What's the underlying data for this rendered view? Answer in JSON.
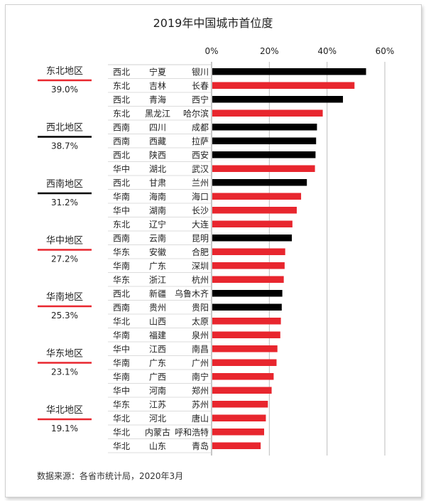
{
  "chart_data": {
    "type": "bar",
    "orientation": "horizontal",
    "title": "2019年中国城市首位度",
    "xlim": [
      0,
      60
    ],
    "xticks": [
      "0%",
      "20%",
      "40%",
      "60%"
    ],
    "tick_values": [
      0,
      20,
      40,
      60
    ],
    "grid": true,
    "colors": {
      "black": "#000000",
      "red": "#e8262e",
      "axis": "#bdbdbd",
      "sep": "#d0d0d0"
    },
    "rows": [
      {
        "region": "西北",
        "province": "宁夏",
        "city": "银川",
        "value": 53.5,
        "color": "black"
      },
      {
        "region": "东北",
        "province": "吉林",
        "city": "长春",
        "value": 49.5,
        "color": "red"
      },
      {
        "region": "西北",
        "province": "青海",
        "city": "西宁",
        "value": 45.5,
        "color": "black"
      },
      {
        "region": "东北",
        "province": "黑龙江",
        "city": "哈尔滨",
        "value": 38.5,
        "color": "red"
      },
      {
        "region": "西南",
        "province": "四川",
        "city": "成都",
        "value": 36.5,
        "color": "black"
      },
      {
        "region": "西南",
        "province": "西藏",
        "city": "拉萨",
        "value": 36.2,
        "color": "black"
      },
      {
        "region": "西北",
        "province": "陕西",
        "city": "西安",
        "value": 36.0,
        "color": "black"
      },
      {
        "region": "华中",
        "province": "湖北",
        "city": "武汉",
        "value": 35.8,
        "color": "red"
      },
      {
        "region": "西北",
        "province": "甘肃",
        "city": "兰州",
        "value": 33.0,
        "color": "black"
      },
      {
        "region": "华南",
        "province": "海南",
        "city": "海口",
        "value": 31.0,
        "color": "red"
      },
      {
        "region": "华中",
        "province": "湖南",
        "city": "长沙",
        "value": 29.5,
        "color": "red"
      },
      {
        "region": "东北",
        "province": "辽宁",
        "city": "大连",
        "value": 28.0,
        "color": "red"
      },
      {
        "region": "西南",
        "province": "云南",
        "city": "昆明",
        "value": 27.8,
        "color": "black"
      },
      {
        "region": "华东",
        "province": "安徽",
        "city": "合肥",
        "value": 25.5,
        "color": "red"
      },
      {
        "region": "华南",
        "province": "广东",
        "city": "深圳",
        "value": 25.3,
        "color": "red"
      },
      {
        "region": "华东",
        "province": "浙江",
        "city": "杭州",
        "value": 25.0,
        "color": "red"
      },
      {
        "region": "西北",
        "province": "新疆",
        "city": "乌鲁木齐",
        "value": 24.5,
        "color": "black"
      },
      {
        "region": "西南",
        "province": "贵州",
        "city": "贵阳",
        "value": 24.3,
        "color": "black"
      },
      {
        "region": "华北",
        "province": "山西",
        "city": "太原",
        "value": 24.0,
        "color": "red"
      },
      {
        "region": "华南",
        "province": "福建",
        "city": "泉州",
        "value": 23.8,
        "color": "red"
      },
      {
        "region": "华中",
        "province": "江西",
        "city": "南昌",
        "value": 22.8,
        "color": "red"
      },
      {
        "region": "华南",
        "province": "广东",
        "city": "广州",
        "value": 22.5,
        "color": "red"
      },
      {
        "region": "华南",
        "province": "广西",
        "city": "南宁",
        "value": 21.5,
        "color": "red"
      },
      {
        "region": "华中",
        "province": "河南",
        "city": "郑州",
        "value": 20.8,
        "color": "red"
      },
      {
        "region": "华东",
        "province": "江苏",
        "city": "苏州",
        "value": 19.5,
        "color": "red"
      },
      {
        "region": "华北",
        "province": "河北",
        "city": "唐山",
        "value": 18.8,
        "color": "red"
      },
      {
        "region": "华北",
        "province": "内蒙古",
        "city": "呼和浩特",
        "value": 18.2,
        "color": "red"
      },
      {
        "region": "华北",
        "province": "山东",
        "city": "青岛",
        "value": 17.0,
        "color": "red"
      }
    ],
    "region_summary": [
      {
        "name": "东北地区",
        "value_label": "39.0%",
        "line_color": "red"
      },
      {
        "name": "西北地区",
        "value_label": "38.7%",
        "line_color": "black"
      },
      {
        "name": "西南地区",
        "value_label": "31.2%",
        "line_color": "black"
      },
      {
        "name": "华中地区",
        "value_label": "27.2%",
        "line_color": "red"
      },
      {
        "name": "华南地区",
        "value_label": "25.3%",
        "line_color": "red"
      },
      {
        "name": "华东地区",
        "value_label": "23.1%",
        "line_color": "red"
      },
      {
        "name": "华北地区",
        "value_label": "19.1%",
        "line_color": "red"
      }
    ],
    "source_note": "数据来源：各省市统计局，2020年3月"
  }
}
